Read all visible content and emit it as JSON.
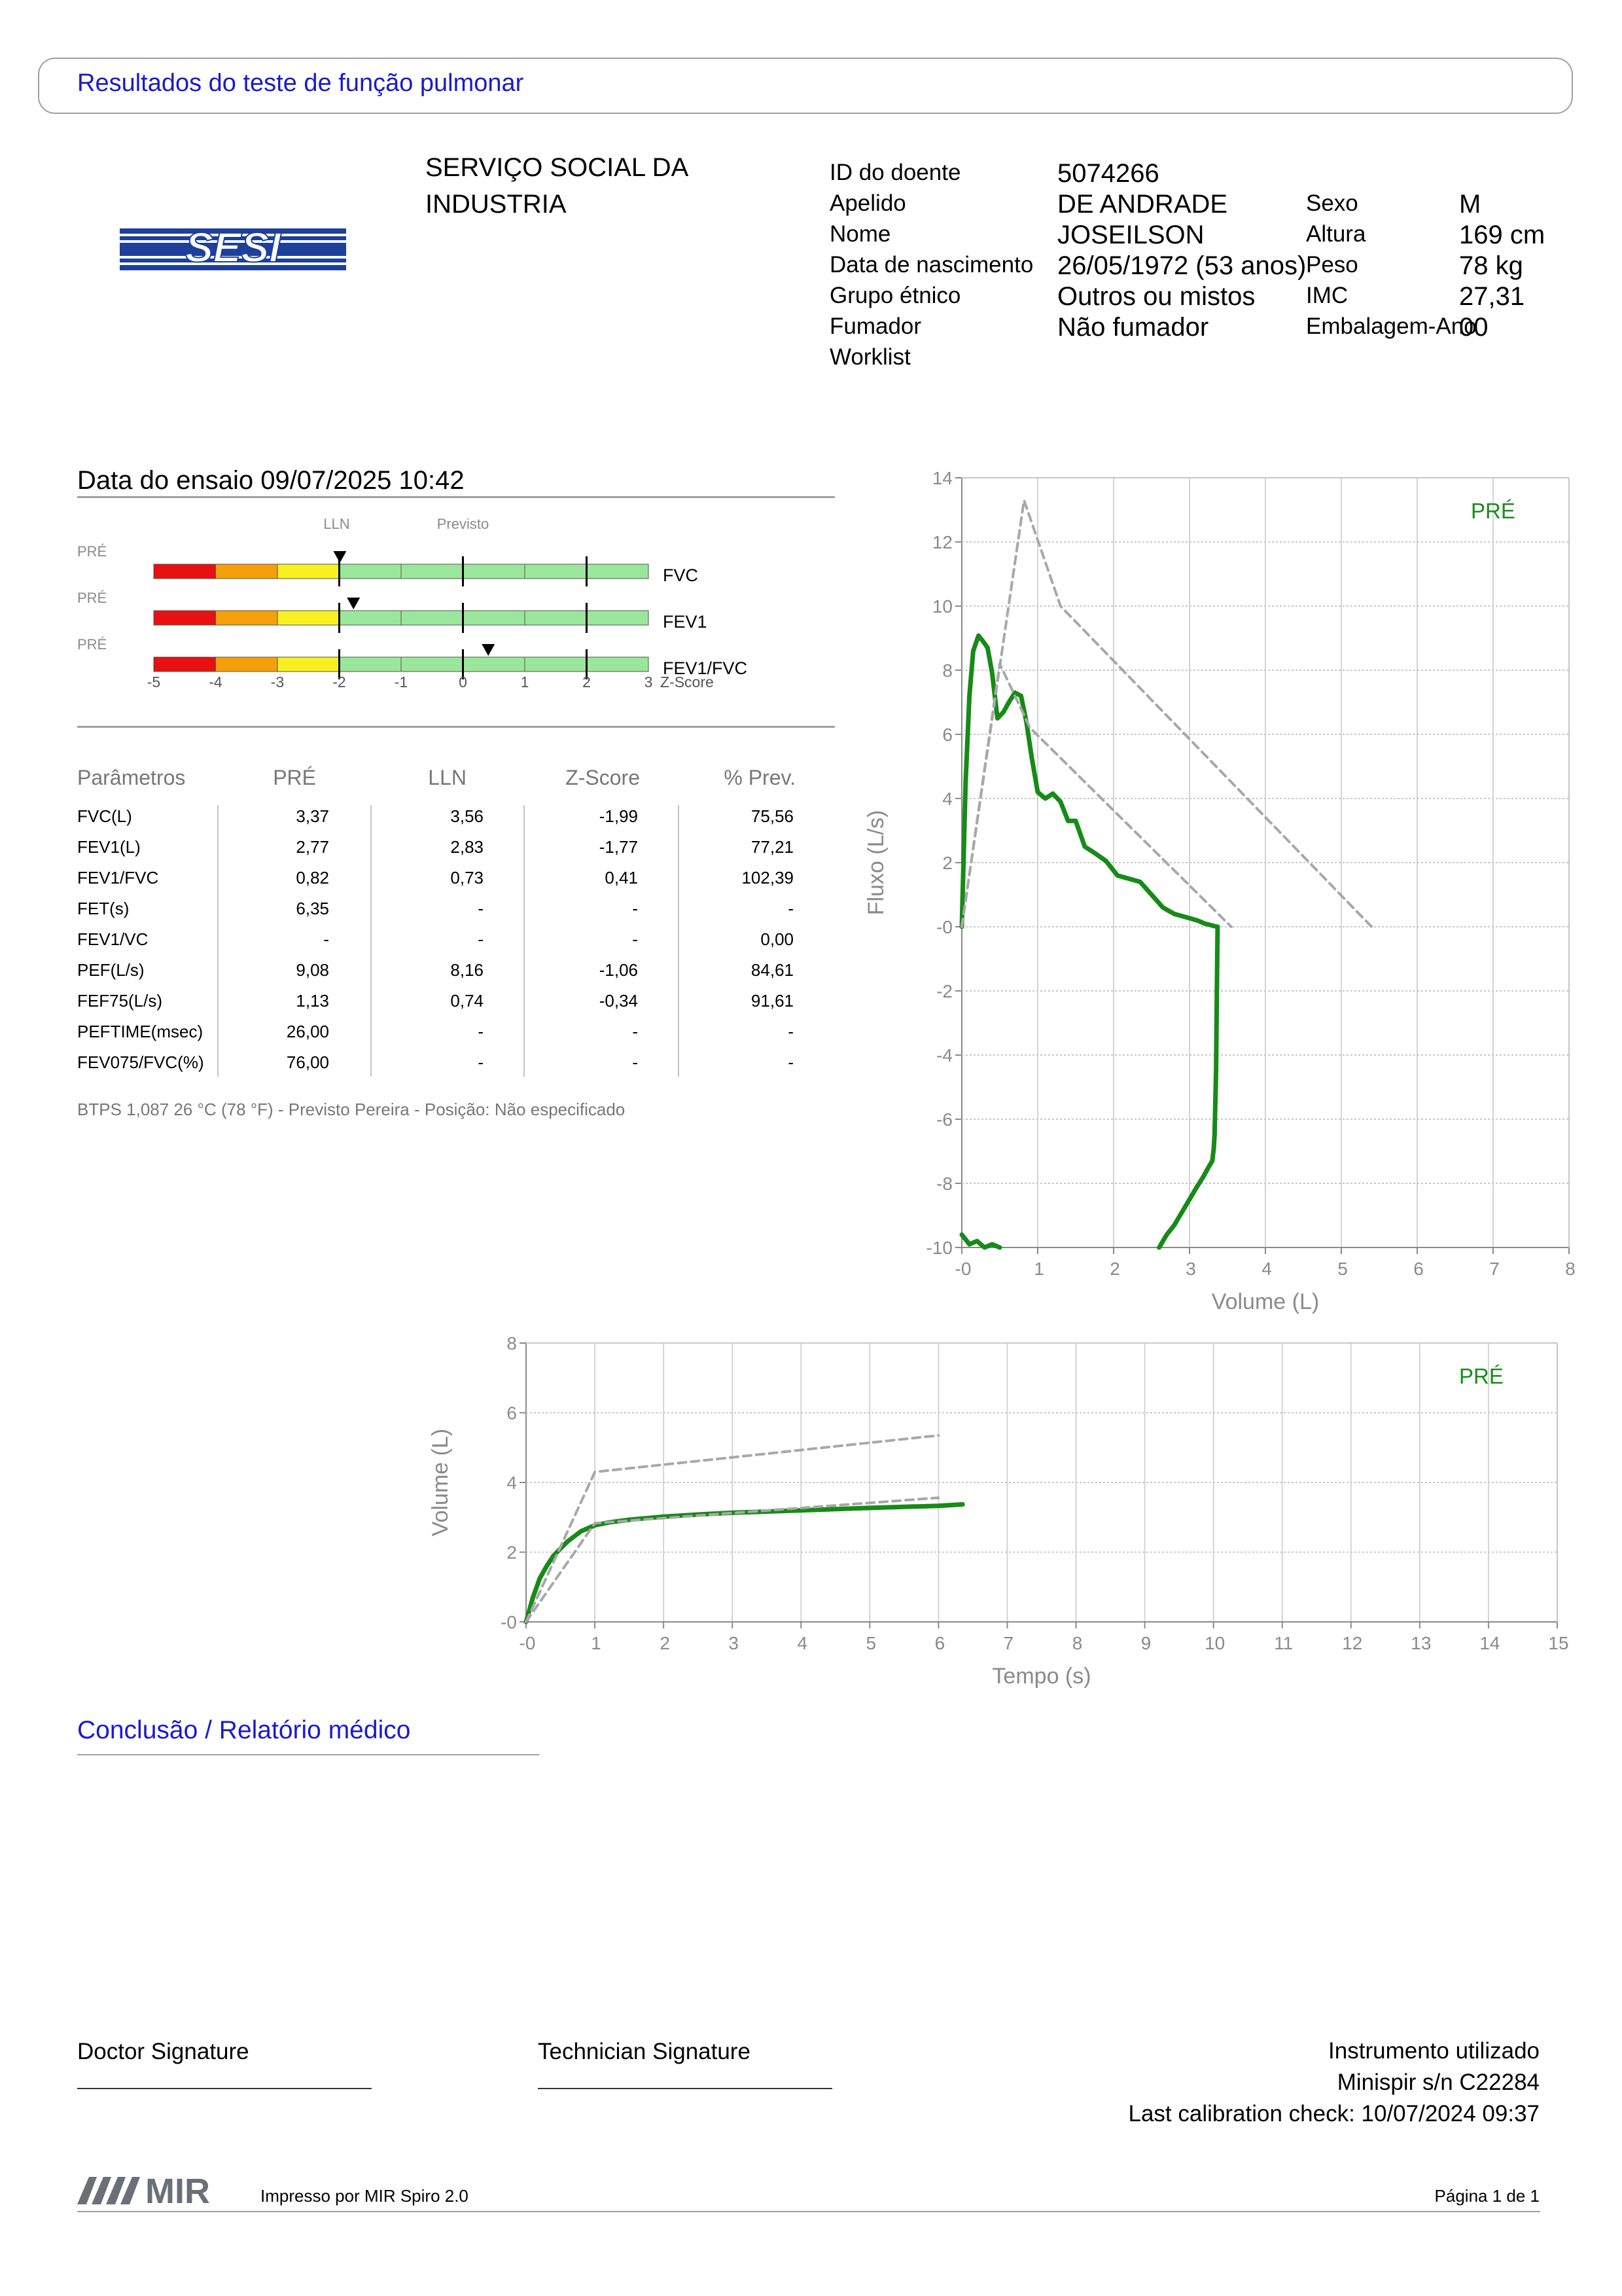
{
  "header": {
    "title": "Resultados do teste de função pulmonar"
  },
  "logo": {
    "text": "SESI",
    "color": "#1e3f9a"
  },
  "organization": {
    "line1": "SERVIÇO SOCIAL DA",
    "line2": "INDUSTRIA"
  },
  "patient": {
    "labels": [
      "ID do doente",
      "Apelido",
      "Nome",
      "Data de nascimento",
      "Grupo étnico",
      "Fumador",
      "Worklist"
    ],
    "values": [
      "5074266",
      "DE ANDRADE",
      "JOSEILSON",
      "26/05/1972 (53 anos)",
      "Outros ou mistos",
      "Não fumador",
      ""
    ],
    "labels2": [
      "Sexo",
      "Altura",
      "Peso",
      "IMC",
      "Embalagem-Ano"
    ],
    "values2": [
      "M",
      "169 cm",
      "78 kg",
      "27,31",
      "00"
    ]
  },
  "test": {
    "date_label": "Data do ensaio 09/07/2025 10:42"
  },
  "zbars": {
    "lln_label": "LLN",
    "predicted_label": "Previsto",
    "prefix": "PRÉ",
    "axis_label": "Z-Score",
    "ticks": [
      "-5",
      "-4",
      "-3",
      "-2",
      "-1",
      "0",
      "1",
      "2",
      "3"
    ],
    "rows": [
      {
        "name": "FVC",
        "z": -1.99
      },
      {
        "name": "FEV1",
        "z": -1.77
      },
      {
        "name": "FEV1/FVC",
        "z": 0.41
      }
    ],
    "colors": {
      "red": "#e81010",
      "orange": "#f5a00a",
      "yellow": "#f8f020",
      "green": "#9ae69a"
    }
  },
  "table": {
    "headers": [
      "Parâmetros",
      "PRÉ",
      "LLN",
      "Z-Score",
      "% Prev."
    ],
    "rows": [
      [
        "FVC(L)",
        "3,37",
        "3,56",
        "-1,99",
        "75,56"
      ],
      [
        "FEV1(L)",
        "2,77",
        "2,83",
        "-1,77",
        "77,21"
      ],
      [
        "FEV1/FVC",
        "0,82",
        "0,73",
        "0,41",
        "102,39"
      ],
      [
        "FET(s)",
        "6,35",
        "-",
        "-",
        "-"
      ],
      [
        "FEV1/VC",
        "-",
        "-",
        "-",
        "0,00"
      ],
      [
        "PEF(L/s)",
        "9,08",
        "8,16",
        "-1,06",
        "84,61"
      ],
      [
        "FEF75(L/s)",
        "1,13",
        "0,74",
        "-0,34",
        "91,61"
      ],
      [
        "PEFTIME(msec)",
        "26,00",
        "-",
        "-",
        "-"
      ],
      [
        "FEV075/FVC(%)",
        "76,00",
        "-",
        "-",
        "-"
      ]
    ],
    "footnote": "BTPS 1,087 26 °C (78 °F) - Previsto Pereira - Posição: Não especificado"
  },
  "chart_data": [
    {
      "type": "line",
      "xlabel": "Volume (L)",
      "ylabel": "Fluxo (L/s)",
      "xlim": [
        0,
        8
      ],
      "ylim": [
        -10,
        14
      ],
      "xticks": [
        "-0",
        "1",
        "2",
        "3",
        "4",
        "5",
        "6",
        "7",
        "8"
      ],
      "yticks": [
        "14",
        "12",
        "10",
        "8",
        "6",
        "4",
        "2",
        "-0",
        "-2",
        "-4",
        "-6",
        "-8",
        "-10"
      ],
      "legend": "PRÉ",
      "grid": true,
      "series": [
        {
          "style": "measured",
          "color": "#178a17",
          "x": [
            0,
            0.05,
            0.1,
            0.15,
            0.22,
            0.28,
            0.34,
            0.4,
            0.47,
            0.55,
            0.62,
            0.7,
            0.78,
            0.85,
            0.92,
            1.0,
            1.1,
            1.2,
            1.3,
            1.4,
            1.5,
            1.62,
            1.75,
            1.9,
            2.05,
            2.2,
            2.35,
            2.5,
            2.65,
            2.8,
            2.95,
            3.1,
            3.2,
            3.28,
            3.33,
            3.37
          ],
          "y": [
            0,
            4.5,
            7.2,
            8.6,
            9.08,
            8.9,
            8.7,
            7.9,
            6.5,
            6.7,
            7.0,
            7.3,
            7.2,
            6.4,
            5.3,
            4.2,
            4.0,
            4.15,
            3.9,
            3.3,
            3.3,
            2.5,
            2.3,
            2.05,
            1.6,
            1.5,
            1.4,
            1.0,
            0.6,
            0.4,
            0.3,
            0.2,
            0.1,
            0.05,
            0.02,
            0.0
          ]
        },
        {
          "style": "measured",
          "color": "#178a17",
          "x": [
            3.37,
            3.36,
            3.35,
            3.33,
            3.32,
            3.3,
            3.25,
            3.18,
            3.1,
            3.0,
            2.9,
            2.8,
            2.7,
            2.6
          ],
          "y": [
            0,
            -2.0,
            -4.5,
            -6.5,
            -6.9,
            -7.3,
            -7.5,
            -7.8,
            -8.1,
            -8.5,
            -8.9,
            -9.3,
            -9.6,
            -10.0
          ]
        },
        {
          "style": "measured",
          "color": "#178a17",
          "x": [
            0,
            0.1,
            0.2,
            0.3,
            0.4,
            0.5
          ],
          "y": [
            -9.6,
            -9.9,
            -9.8,
            -10.0,
            -9.9,
            -10.0
          ]
        },
        {
          "style": "predicted",
          "color": "#a8a8a8",
          "x": [
            0,
            0.82,
            1.3,
            5.4
          ],
          "y": [
            0,
            13.3,
            10.0,
            0
          ]
        },
        {
          "style": "predicted",
          "color": "#a8a8a8",
          "x": [
            0,
            0.5,
            0.9,
            3.55
          ],
          "y": [
            0,
            8.2,
            6.2,
            0
          ]
        }
      ]
    },
    {
      "type": "line",
      "xlabel": "Tempo (s)",
      "ylabel": "Volume (L)",
      "xlim": [
        0,
        15
      ],
      "ylim": [
        0,
        8
      ],
      "xticks": [
        "-0",
        "1",
        "2",
        "3",
        "4",
        "5",
        "6",
        "7",
        "8",
        "9",
        "10",
        "11",
        "12",
        "13",
        "14",
        "15"
      ],
      "yticks": [
        "8",
        "6",
        "4",
        "2",
        "-0"
      ],
      "legend": "PRÉ",
      "grid": true,
      "series": [
        {
          "style": "measured",
          "color": "#178a17",
          "x": [
            0,
            0.1,
            0.2,
            0.3,
            0.4,
            0.5,
            0.6,
            0.7,
            0.8,
            1.0,
            1.2,
            1.5,
            2.0,
            2.5,
            3.0,
            4.0,
            5.0,
            6.0,
            6.35
          ],
          "y": [
            0,
            0.7,
            1.25,
            1.6,
            1.9,
            2.1,
            2.3,
            2.45,
            2.6,
            2.77,
            2.85,
            2.93,
            3.02,
            3.08,
            3.13,
            3.2,
            3.27,
            3.33,
            3.37
          ]
        },
        {
          "style": "predicted",
          "color": "#a8a8a8",
          "x": [
            0,
            1.0,
            6.0
          ],
          "y": [
            0,
            4.3,
            5.35
          ]
        },
        {
          "style": "predicted",
          "color": "#a8a8a8",
          "x": [
            0,
            1.0,
            6.0
          ],
          "y": [
            0,
            2.83,
            3.56
          ]
        }
      ]
    }
  ],
  "conclusion": {
    "title": "Conclusão / Relatório médico"
  },
  "signatures": {
    "doctor": "Doctor Signature",
    "technician": "Technician Signature"
  },
  "instrument": {
    "line1": "Instrumento utilizado",
    "line2": "Minispir s/n C22284",
    "line3": "Last calibration check: 10/07/2024 09:37"
  },
  "footer": {
    "brand": "MIR",
    "printed_by": "Impresso por MIR Spiro 2.0",
    "page": "Página 1 de 1"
  }
}
